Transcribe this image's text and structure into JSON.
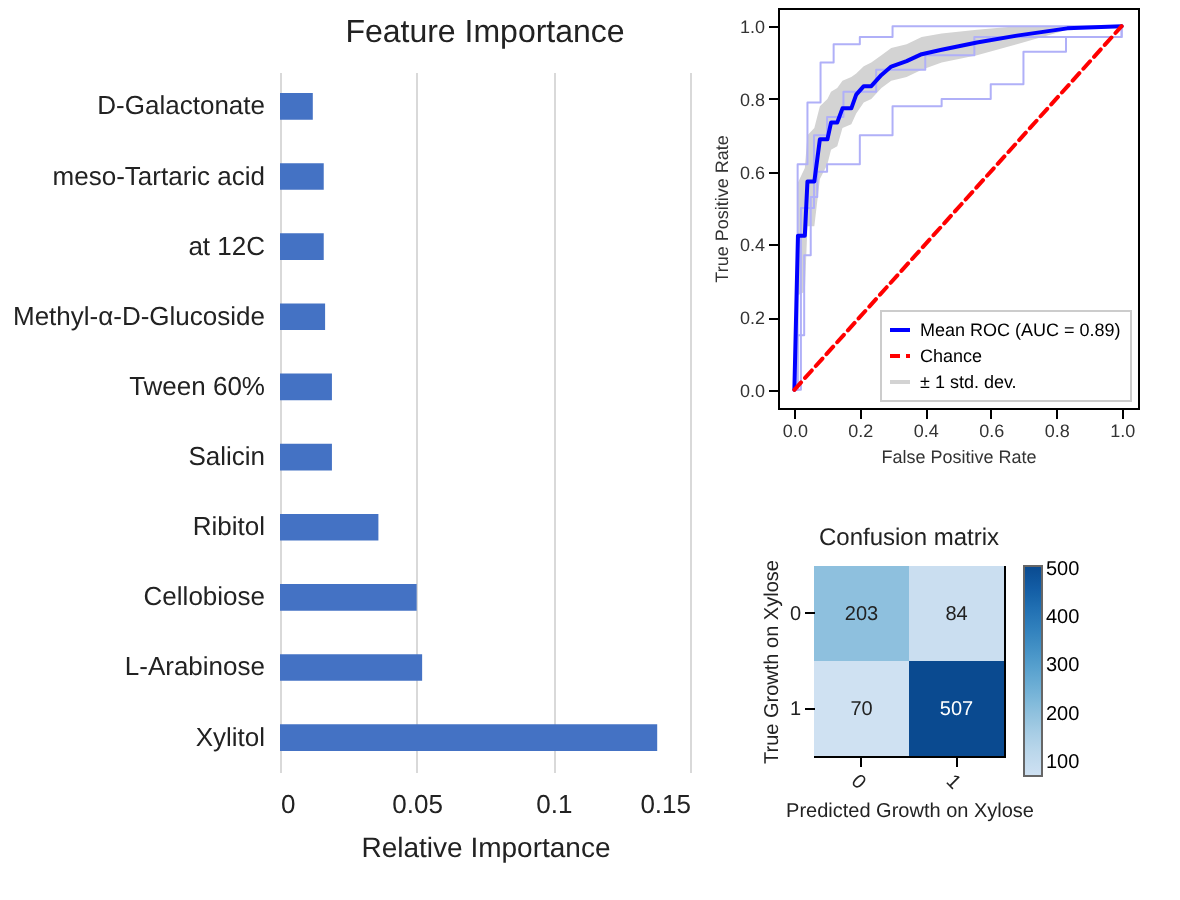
{
  "chart_data": [
    {
      "type": "bar",
      "orientation": "horizontal",
      "title": "Feature Importance",
      "xlabel": "Relative Importance",
      "categories": [
        "D-Galactonate",
        "meso-Tartaric acid",
        "at 12C",
        "Methyl-α-D-Glucoside",
        "Tween 60%",
        "Salicin",
        "Ribitol",
        "Cellobiose",
        "L-Arabinose",
        "Xylitol"
      ],
      "values": [
        0.012,
        0.016,
        0.016,
        0.0165,
        0.019,
        0.019,
        0.036,
        0.05,
        0.052,
        0.138
      ],
      "color": "#4472c4",
      "xlim": [
        0,
        0.15
      ],
      "xticks": [
        0,
        0.05,
        0.1,
        0.15
      ],
      "grid": "x"
    },
    {
      "type": "line",
      "xlabel": "False Positive Rate",
      "ylabel": "True Positive Rate",
      "annotations": [
        "± 1 std. dev."
      ],
      "xlim": [
        -0.05,
        1.05
      ],
      "ylim": [
        -0.05,
        1.05
      ],
      "xticks": [
        {
          "value": 0,
          "label": "0.0"
        },
        {
          "value": 0.2,
          "label": "0.2"
        },
        {
          "value": 0.4,
          "label": "0.4"
        },
        {
          "value": 0.6,
          "label": "0.6"
        },
        {
          "value": 0.8,
          "label": "0.8"
        },
        {
          "value": 1,
          "label": "1.0"
        }
      ],
      "yticks": [
        {
          "value": 0,
          "label": "0.0"
        },
        {
          "value": 0.2,
          "label": "0.2"
        },
        {
          "value": 0.4,
          "label": "0.4"
        },
        {
          "value": 0.6,
          "label": "0.6"
        },
        {
          "value": 0.8,
          "label": "0.8"
        },
        {
          "value": 1,
          "label": "1.0"
        }
      ],
      "legend": "bottom right",
      "series": [
        {
          "type": "step",
          "color": "#b0b0f8",
          "x": [
            0,
            0.01,
            0.03,
            0.05,
            0.07,
            0.1,
            0.2,
            0.3,
            0.45,
            0.6,
            0.7,
            0.83,
            1
          ],
          "values": [
            0,
            0.15,
            0.37,
            0.53,
            0.6,
            0.62,
            0.7,
            0.78,
            0.8,
            0.84,
            0.93,
            0.97,
            1
          ]
        },
        {
          "type": "step",
          "color": "#b0b0f8",
          "x": [
            0,
            0.01,
            0.04,
            0.08,
            0.12,
            0.2,
            0.3,
            0.45,
            0.6,
            1
          ],
          "values": [
            0,
            0.62,
            0.79,
            0.9,
            0.95,
            0.97,
            1,
            1,
            1,
            1
          ]
        },
        {
          "type": "step",
          "color": "#b0b0f8",
          "x": [
            0,
            0.02,
            0.06,
            0.1,
            0.15,
            0.25,
            0.4,
            0.55,
            1
          ],
          "values": [
            0,
            0.5,
            0.7,
            0.75,
            0.82,
            0.88,
            0.92,
            0.97,
            1
          ]
        },
        {
          "type": "line",
          "name": "Mean ROC (AUC = 0.89)",
          "color": "#0000ff",
          "line_style": "solid",
          "x": [
            0,
            0.011,
            0.032,
            0.04,
            0.061,
            0.078,
            0.101,
            0.112,
            0.131,
            0.147,
            0.174,
            0.189,
            0.212,
            0.235,
            0.266,
            0.296,
            0.343,
            0.389,
            0.45,
            0.558,
            0.68,
            0.834,
            1
          ],
          "values": [
            0,
            0.424,
            0.424,
            0.573,
            0.573,
            0.689,
            0.689,
            0.735,
            0.735,
            0.774,
            0.774,
            0.812,
            0.835,
            0.835,
            0.866,
            0.889,
            0.904,
            0.923,
            0.935,
            0.955,
            0.974,
            0.994,
            1
          ],
          "lower": [
            0,
            0.26,
            0.27,
            0.45,
            0.45,
            0.58,
            0.62,
            0.66,
            0.67,
            0.72,
            0.73,
            0.76,
            0.79,
            0.8,
            0.83,
            0.85,
            0.86,
            0.88,
            0.9,
            0.92,
            0.95,
            0.99,
            1
          ],
          "upper": [
            0,
            0.57,
            0.61,
            0.7,
            0.72,
            0.78,
            0.8,
            0.82,
            0.83,
            0.85,
            0.86,
            0.87,
            0.89,
            0.9,
            0.92,
            0.94,
            0.95,
            0.97,
            0.98,
            0.99,
            1,
            1,
            1
          ]
        },
        {
          "type": "line",
          "name": "Chance",
          "color": "#ff0000",
          "line_style": "dashed",
          "x": [
            0,
            1
          ],
          "values": [
            0,
            1
          ]
        }
      ]
    },
    {
      "type": "heatmap",
      "title": "Confusion matrix",
      "xlabel": "Predicted Growth on Xylose",
      "ylabel": "True Growth on Xylose",
      "categories": [
        "0",
        "1"
      ],
      "y_categories": [
        "0",
        "1"
      ],
      "cells": [
        [
          203,
          84
        ],
        [
          70,
          507
        ]
      ],
      "clim": [
        70,
        507
      ],
      "cticks": [
        100,
        200,
        300,
        400,
        500
      ],
      "data_labels": true
    }
  ]
}
